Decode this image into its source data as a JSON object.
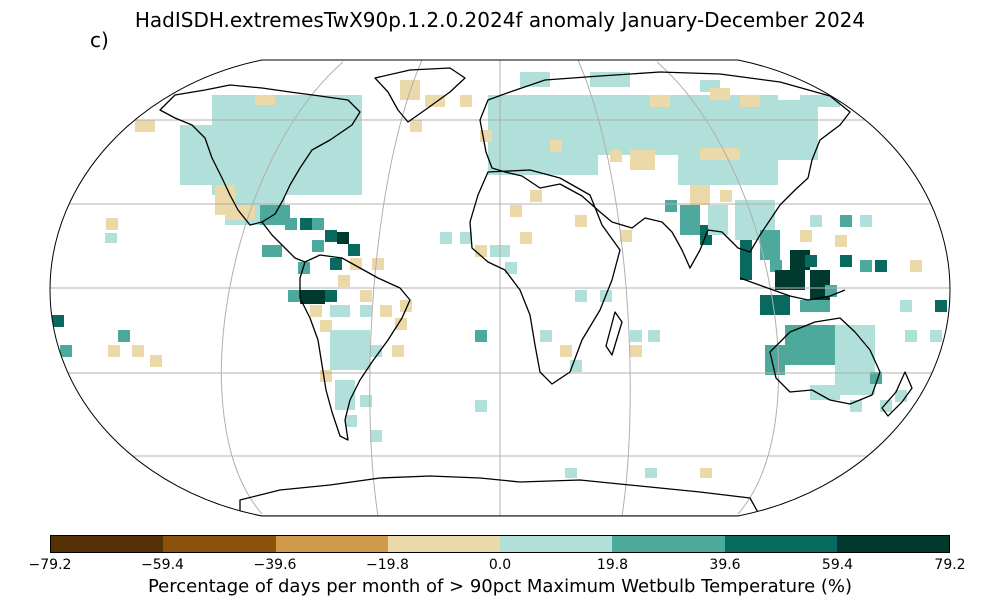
{
  "title": "HadISDH.extremesTwX90p.1.2.0.2024f anomaly January-December 2024",
  "panel_label": "c)",
  "colorbar": {
    "label": "Percentage of days per month of > 90pct Maximum Wetbulb Temperature (%)",
    "ticks": [
      "−79.2",
      "−59.4",
      "−39.6",
      "−19.8",
      "0.0",
      "19.8",
      "39.6",
      "59.4",
      "79.2"
    ],
    "colors": [
      "#543005",
      "#8c510a",
      "#cf9a4a",
      "#ecd9a9",
      "#b0e0d9",
      "#4da99b",
      "#08695f",
      "#003a2e"
    ]
  },
  "chart_data": {
    "type": "heatmap",
    "title": "HadISDH.extremesTwX90p.1.2.0.2024f anomaly January-December 2024",
    "projection": "Robinson",
    "value_range": [
      -79.2,
      79.2
    ],
    "units": "%",
    "regions": [
      {
        "name": "North America",
        "bin": "0.0 to 19.8",
        "extent": "widespread"
      },
      {
        "name": "Central America / Caribbean",
        "bin": "39.6 to 79.2",
        "extent": "several cells"
      },
      {
        "name": "Northern South America",
        "bin": "39.6 to 59.4",
        "extent": "several cells"
      },
      {
        "name": "Andes / western South America",
        "bin": "-19.8 to 0.0",
        "extent": "scattered"
      },
      {
        "name": "Europe / northern Asia",
        "bin": "0.0 to 19.8",
        "extent": "widespread"
      },
      {
        "name": "Central Asia",
        "bin": "-19.8 to 0.0",
        "extent": "scattered"
      },
      {
        "name": "South and Southeast Asia",
        "bin": "19.8 to 79.2",
        "extent": "widespread"
      },
      {
        "name": "Maritime Continent",
        "bin": "59.4 to 79.2",
        "extent": "several cells"
      },
      {
        "name": "Australia",
        "bin": "19.8 to 39.6",
        "extent": "widespread"
      },
      {
        "name": "Southern Africa",
        "bin": "0.0 to 19.8",
        "extent": "scattered"
      }
    ]
  }
}
